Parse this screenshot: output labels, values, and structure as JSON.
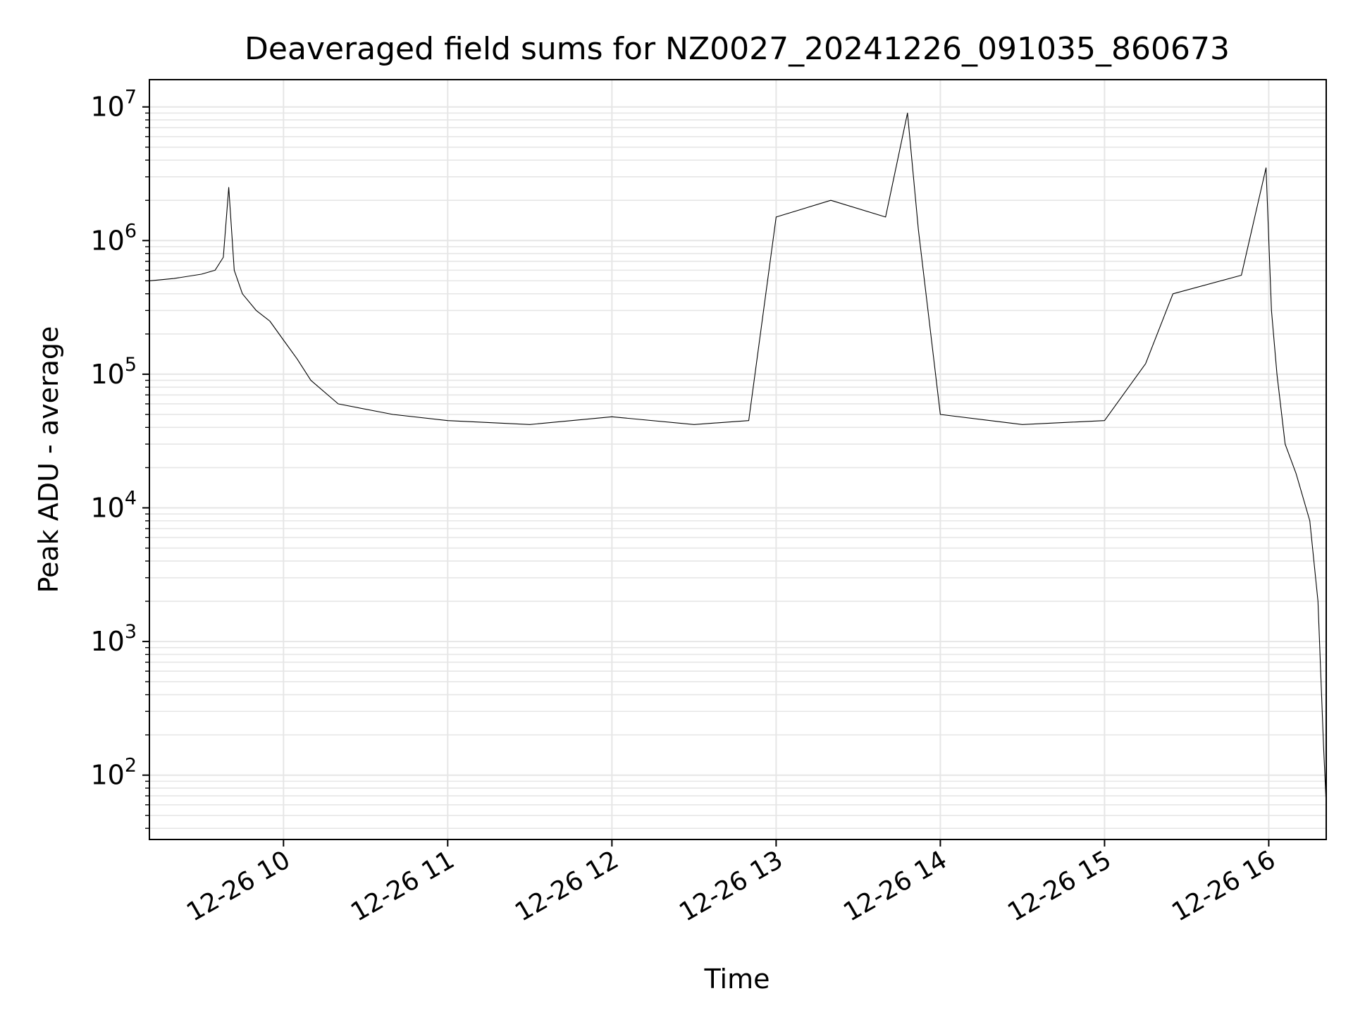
{
  "chart_data": {
    "type": "line",
    "title": "Deaveraged field sums for NZ0027_20241226_091035_860673",
    "xlabel": "Time",
    "ylabel": "Peak ADU - average",
    "x_scale": "time",
    "y_scale": "log",
    "xlim": [
      "2024-12-26 09:11",
      "2024-12-26 16:21"
    ],
    "ylim": [
      33,
      16000000
    ],
    "grid": true,
    "x_ticks": [
      {
        "value": "2024-12-26 10:00",
        "label": "12-26 10"
      },
      {
        "value": "2024-12-26 11:00",
        "label": "12-26 11"
      },
      {
        "value": "2024-12-26 12:00",
        "label": "12-26 12"
      },
      {
        "value": "2024-12-26 13:00",
        "label": "12-26 13"
      },
      {
        "value": "2024-12-26 14:00",
        "label": "12-26 14"
      },
      {
        "value": "2024-12-26 15:00",
        "label": "12-26 15"
      },
      {
        "value": "2024-12-26 16:00",
        "label": "12-26 16"
      }
    ],
    "y_ticks": [
      {
        "value": 100,
        "base": "10",
        "exp": "2"
      },
      {
        "value": 1000,
        "base": "10",
        "exp": "3"
      },
      {
        "value": 10000,
        "base": "10",
        "exp": "4"
      },
      {
        "value": 100000,
        "base": "10",
        "exp": "5"
      },
      {
        "value": 1000000,
        "base": "10",
        "exp": "6"
      },
      {
        "value": 10000000,
        "base": "10",
        "exp": "7"
      }
    ],
    "line_color": "#000000",
    "grid_color": "#e6e6e6",
    "series": [
      {
        "values": [
          {
            "t": "2024-12-26 09:11",
            "y": 500000
          },
          {
            "t": "2024-12-26 09:20",
            "y": 520000
          },
          {
            "t": "2024-12-26 09:30",
            "y": 560000
          },
          {
            "t": "2024-12-26 09:35",
            "y": 600000
          },
          {
            "t": "2024-12-26 09:38",
            "y": 750000
          },
          {
            "t": "2024-12-26 09:40",
            "y": 2500000
          },
          {
            "t": "2024-12-26 09:42",
            "y": 600000
          },
          {
            "t": "2024-12-26 09:45",
            "y": 400000
          },
          {
            "t": "2024-12-26 09:50",
            "y": 300000
          },
          {
            "t": "2024-12-26 09:55",
            "y": 250000
          },
          {
            "t": "2024-12-26 10:00",
            "y": 180000
          },
          {
            "t": "2024-12-26 10:05",
            "y": 130000
          },
          {
            "t": "2024-12-26 10:10",
            "y": 90000
          },
          {
            "t": "2024-12-26 10:20",
            "y": 60000
          },
          {
            "t": "2024-12-26 10:40",
            "y": 50000
          },
          {
            "t": "2024-12-26 11:00",
            "y": 45000
          },
          {
            "t": "2024-12-26 11:30",
            "y": 42000
          },
          {
            "t": "2024-12-26 12:00",
            "y": 48000
          },
          {
            "t": "2024-12-26 12:30",
            "y": 42000
          },
          {
            "t": "2024-12-26 12:50",
            "y": 45000
          },
          {
            "t": "2024-12-26 13:00",
            "y": 1500000
          },
          {
            "t": "2024-12-26 13:20",
            "y": 2000000
          },
          {
            "t": "2024-12-26 13:40",
            "y": 1500000
          },
          {
            "t": "2024-12-26 13:48",
            "y": 9000000
          },
          {
            "t": "2024-12-26 13:52",
            "y": 1200000
          },
          {
            "t": "2024-12-26 14:00",
            "y": 50000
          },
          {
            "t": "2024-12-26 14:30",
            "y": 42000
          },
          {
            "t": "2024-12-26 15:00",
            "y": 45000
          },
          {
            "t": "2024-12-26 15:15",
            "y": 120000
          },
          {
            "t": "2024-12-26 15:25",
            "y": 400000
          },
          {
            "t": "2024-12-26 15:50",
            "y": 550000
          },
          {
            "t": "2024-12-26 15:59",
            "y": 3500000
          },
          {
            "t": "2024-12-26 16:01",
            "y": 300000
          },
          {
            "t": "2024-12-26 16:03",
            "y": 100000
          },
          {
            "t": "2024-12-26 16:06",
            "y": 30000
          },
          {
            "t": "2024-12-26 16:10",
            "y": 18000
          },
          {
            "t": "2024-12-26 16:15",
            "y": 8000
          },
          {
            "t": "2024-12-26 16:18",
            "y": 2000
          },
          {
            "t": "2024-12-26 16:20",
            "y": 170
          },
          {
            "t": "2024-12-26 16:21",
            "y": 60
          }
        ]
      }
    ]
  }
}
